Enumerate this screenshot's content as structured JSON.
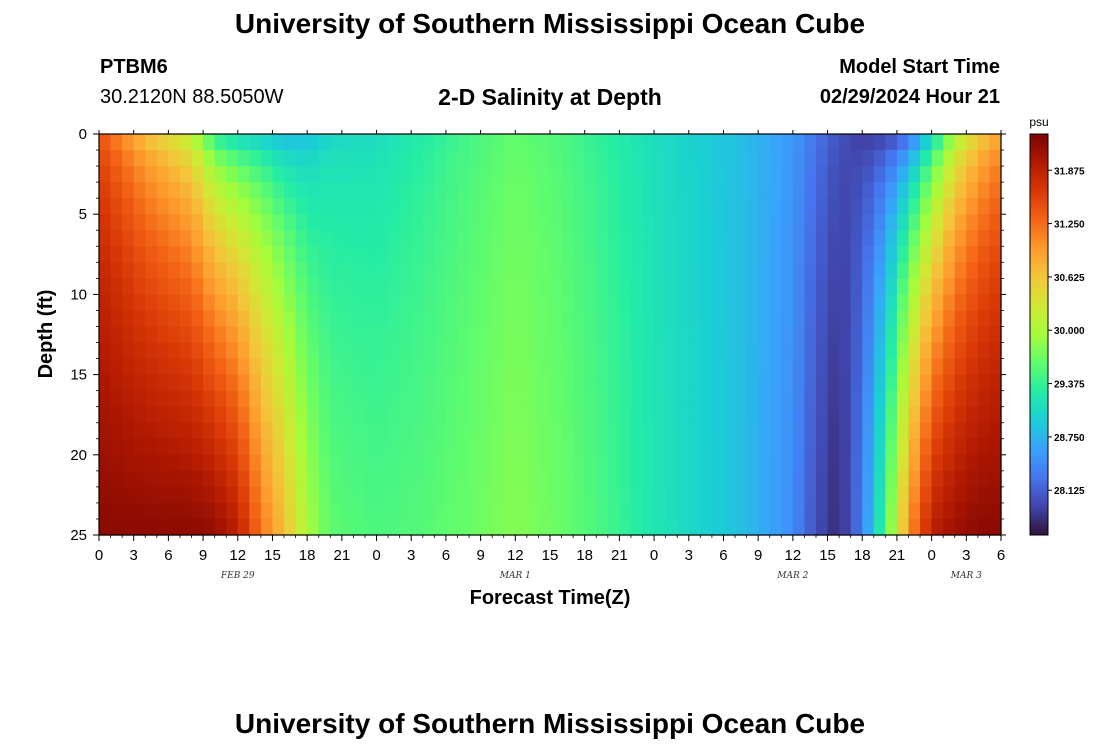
{
  "header": {
    "title_top": "University of Southern Mississippi Ocean Cube",
    "title_bottom": "University of Southern Mississippi Ocean Cube",
    "station": "PTBM6",
    "coords": "30.2120N  88.5050W",
    "subtitle": "2-D Salinity at Depth",
    "model_start_label": "Model Start Time",
    "model_start_value": "02/29/2024 Hour 21"
  },
  "chart_data": {
    "type": "heatmap",
    "title": "2-D Salinity at Depth",
    "xlabel": "Forecast Time(Z)",
    "ylabel": "Depth (ft)",
    "x_tick_labels": [
      "0",
      "3",
      "6",
      "9",
      "12",
      "15",
      "18",
      "21",
      "0",
      "3",
      "6",
      "9",
      "12",
      "15",
      "18",
      "21",
      "0",
      "3",
      "6",
      "9",
      "12",
      "15",
      "18",
      "21",
      "0",
      "3",
      "6"
    ],
    "date_labels": [
      {
        "label": "FEB 29",
        "tick_index": 4
      },
      {
        "label": "MAR 1",
        "tick_index": 12
      },
      {
        "label": "MAR 2",
        "tick_index": 20
      },
      {
        "label": "MAR 3",
        "tick_index": 25
      }
    ],
    "x_range_hours": [
      0,
      78
    ],
    "y_ticks": [
      0,
      5,
      10,
      15,
      20,
      25
    ],
    "y_range_ft": [
      0,
      25
    ],
    "colorbar": {
      "unit": "psu",
      "ticks": [
        "31.875",
        "31.250",
        "30.625",
        "30.000",
        "29.375",
        "28.750",
        "28.125"
      ],
      "range": [
        27.6,
        32.3
      ],
      "colors": [
        "#30123b",
        "#4145ab",
        "#4675ed",
        "#39a2fc",
        "#1bcfd4",
        "#24eca6",
        "#61fc6c",
        "#a4fc3b",
        "#d1e834",
        "#f3c63a",
        "#fe9b2d",
        "#f36315",
        "#d93806",
        "#b11901",
        "#7a0403"
      ]
    },
    "salinity_profiles": {
      "hours": [
        0,
        4,
        8,
        10,
        12,
        14,
        16,
        18,
        20,
        24,
        28,
        32,
        36,
        40,
        44,
        48,
        52,
        56,
        60,
        62,
        64,
        66,
        68,
        70,
        72,
        74,
        76,
        78
      ],
      "surface": [
        31.35,
        30.55,
        29.95,
        29.1,
        28.85,
        28.8,
        28.65,
        28.75,
        29.0,
        29.05,
        29.25,
        29.45,
        29.6,
        29.5,
        29.3,
        29.1,
        28.95,
        28.8,
        28.55,
        28.3,
        28.05,
        27.85,
        27.8,
        28.0,
        28.8,
        29.8,
        30.4,
        30.8
      ],
      "bottom": [
        32.2,
        32.2,
        32.2,
        32.15,
        31.9,
        31.2,
        30.7,
        30.0,
        29.6,
        29.5,
        29.55,
        29.65,
        29.8,
        29.65,
        29.45,
        29.2,
        29.0,
        28.8,
        28.45,
        28.0,
        27.75,
        28.35,
        29.5,
        31.0,
        31.9,
        32.1,
        32.2,
        32.2
      ]
    }
  }
}
